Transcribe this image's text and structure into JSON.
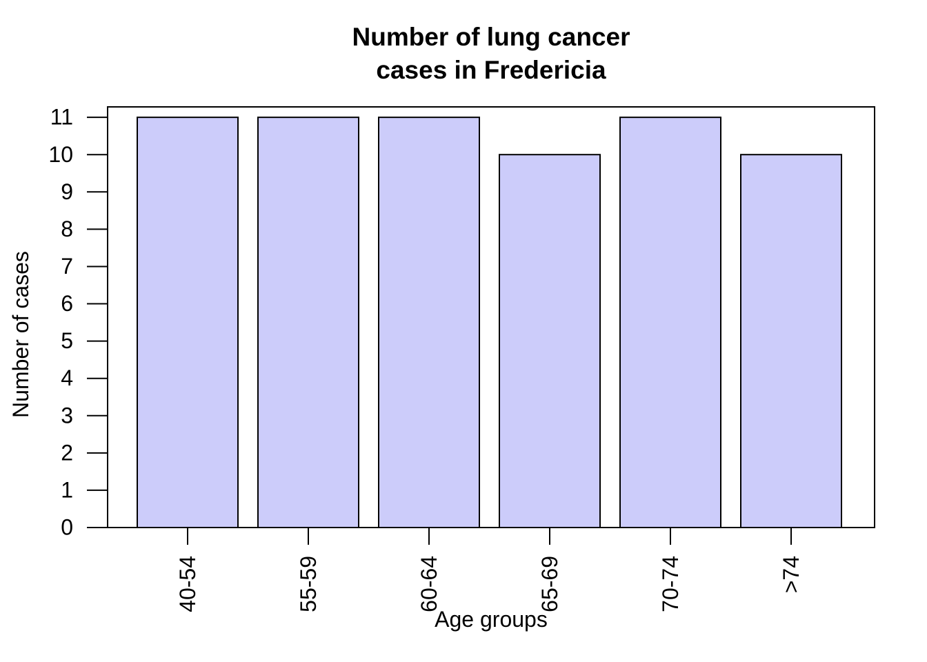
{
  "window": {
    "background_color": "#ffffff",
    "text_color": "#000000"
  },
  "chart_data": {
    "type": "bar",
    "title": "Number of lung cancer\ncases in Fredericia",
    "title_lines": [
      "Number of lung cancer",
      "cases in Fredericia"
    ],
    "xlabel": "Age groups",
    "ylabel": "Number of cases",
    "categories": [
      "40-54",
      "55-59",
      "60-64",
      "65-69",
      "70-74",
      ">74"
    ],
    "values": [
      11,
      11,
      11,
      10,
      11,
      10
    ],
    "series": [
      {
        "name": "Number of cases",
        "values": [
          11,
          11,
          11,
          10,
          11,
          10
        ]
      }
    ],
    "yticks": [
      0,
      1,
      2,
      3,
      4,
      5,
      6,
      7,
      8,
      9,
      10,
      11
    ],
    "ylim": [
      0,
      11.28
    ],
    "x_tick_labels_rotated_degrees": 90,
    "grid": false,
    "legend": false,
    "bar_fill_color": "#ccccfa",
    "bar_stroke_color": "#000000",
    "axis_color": "#000000"
  }
}
